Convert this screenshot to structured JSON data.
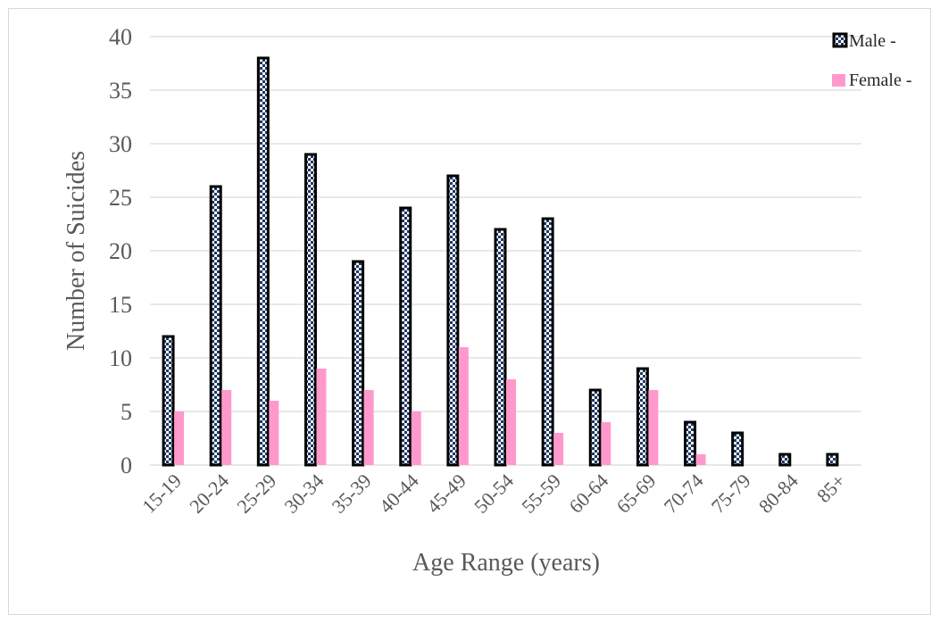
{
  "chart_data": {
    "type": "bar",
    "title": "",
    "xlabel": "Age Range (years)",
    "ylabel": "Number of Suicides",
    "ylim": [
      0,
      40
    ],
    "yticks": [
      0,
      5,
      10,
      15,
      20,
      25,
      30,
      35,
      40
    ],
    "grid": true,
    "legend_position": "top-right",
    "categories": [
      "15-19",
      "20-24",
      "25-29",
      "30-34",
      "35-39",
      "40-44",
      "45-49",
      "50-54",
      "55-59",
      "60-64",
      "65-69",
      "70-74",
      "75-79",
      "80-84",
      "85+"
    ],
    "series": [
      {
        "name": "Male -",
        "color": "#1f3864",
        "values": [
          12,
          26,
          38,
          29,
          19,
          24,
          27,
          22,
          23,
          7,
          9,
          4,
          3,
          1,
          1
        ]
      },
      {
        "name": "Female -",
        "color": "#ff99cc",
        "values": [
          5,
          7,
          6,
          9,
          7,
          5,
          11,
          8,
          3,
          4,
          7,
          1,
          0,
          0,
          0
        ]
      }
    ]
  }
}
